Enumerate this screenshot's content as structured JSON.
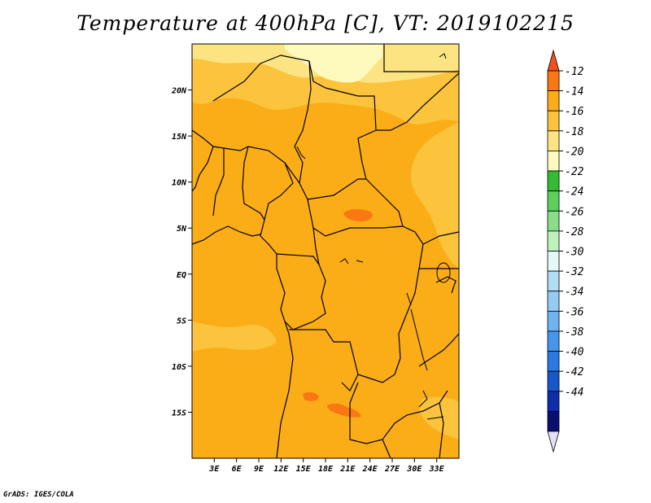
{
  "title": "Temperature at 400hPa [C], VT: 2019102215",
  "footer": "GrADS: IGES/COLA",
  "map": {
    "lon_range": [
      0,
      36
    ],
    "lat_range": [
      -20,
      25
    ],
    "background_color": "#fbad18",
    "lat_ticks": [
      {
        "value": 20,
        "label": "20N"
      },
      {
        "value": 15,
        "label": "15N"
      },
      {
        "value": 10,
        "label": "10N"
      },
      {
        "value": 5,
        "label": "5N"
      },
      {
        "value": 0,
        "label": "EQ"
      },
      {
        "value": -5,
        "label": "5S"
      },
      {
        "value": -10,
        "label": "10S"
      },
      {
        "value": -15,
        "label": "15S"
      }
    ],
    "lon_ticks": [
      {
        "value": 3,
        "label": "3E"
      },
      {
        "value": 6,
        "label": "6E"
      },
      {
        "value": 9,
        "label": "9E"
      },
      {
        "value": 12,
        "label": "12E"
      },
      {
        "value": 15,
        "label": "15E"
      },
      {
        "value": 18,
        "label": "18E"
      },
      {
        "value": 21,
        "label": "21E"
      },
      {
        "value": 24,
        "label": "24E"
      },
      {
        "value": 27,
        "label": "27E"
      },
      {
        "value": 30,
        "label": "30E"
      },
      {
        "value": 33,
        "label": "33E"
      }
    ]
  },
  "colorbar": {
    "labels": [
      "-12",
      "-14",
      "-16",
      "-18",
      "-20",
      "-22",
      "-24",
      "-26",
      "-28",
      "-30",
      "-32",
      "-34",
      "-36",
      "-38",
      "-40",
      "-42",
      "-44"
    ],
    "colors": [
      "#f0501e",
      "#fa7814",
      "#fbad18",
      "#fbc43c",
      "#fde483",
      "#fef9bd",
      "#34bc34",
      "#5ccf5c",
      "#8ade8a",
      "#bdf2bd",
      "#e4f8f8",
      "#b2ddf6",
      "#94cbf5",
      "#6fb4f0",
      "#4796ec",
      "#2a79e2",
      "#1657cb",
      "#0c2ea8",
      "#08106e",
      "#e4e0f8"
    ]
  }
}
